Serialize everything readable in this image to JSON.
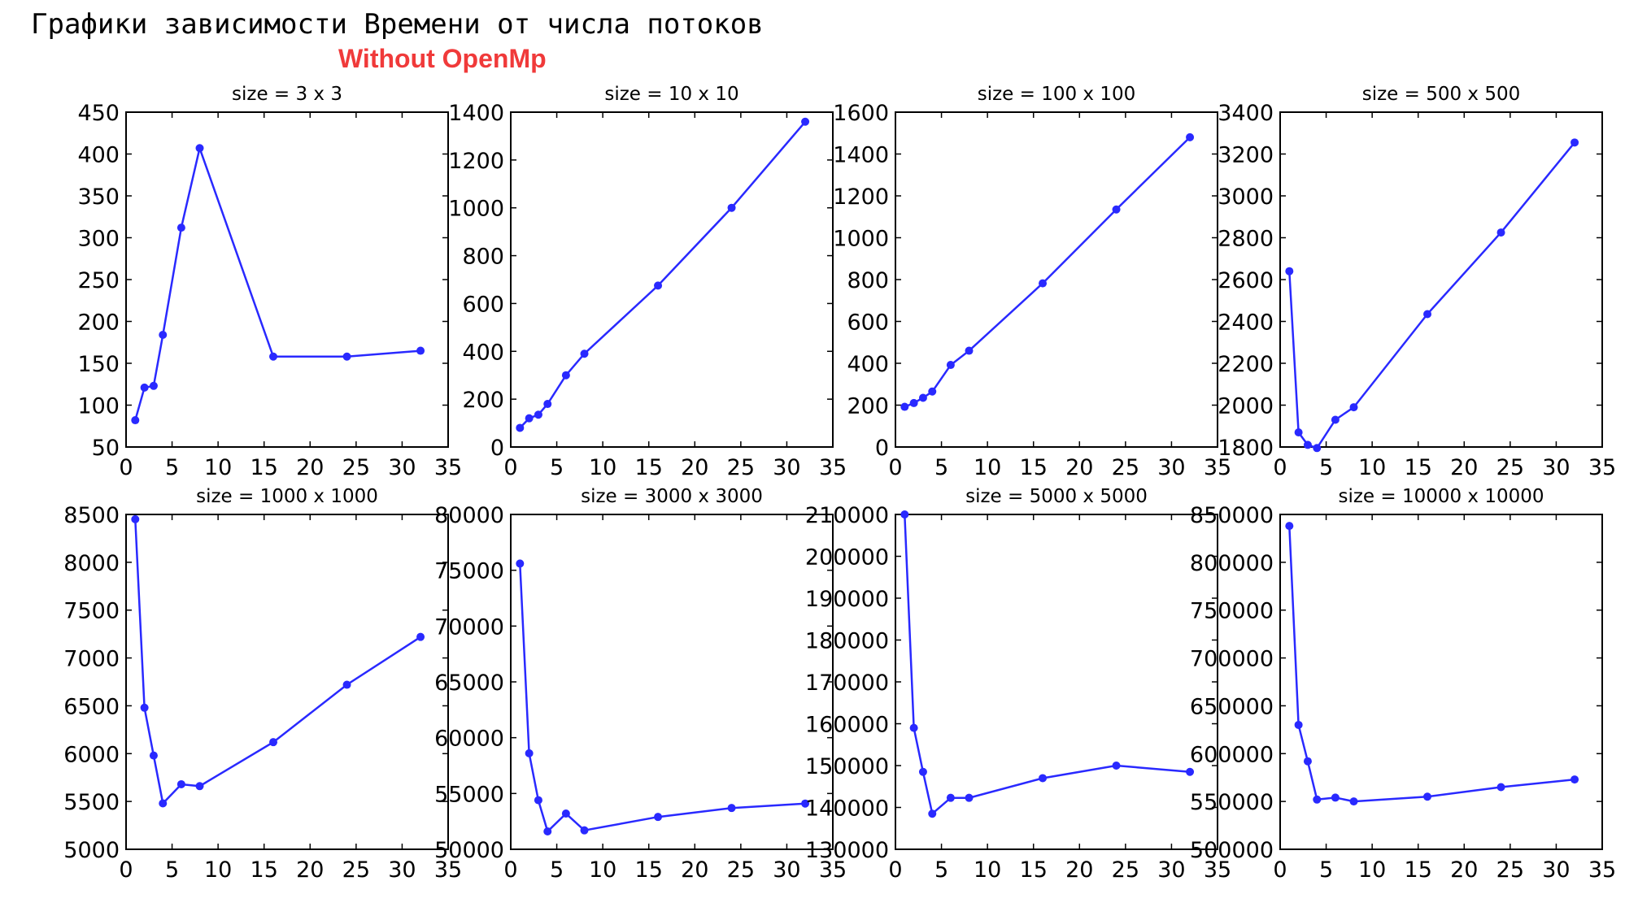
{
  "header": {
    "title": "Графики зависимости Времени от числа потоков",
    "subtitle": "Without OpenMp"
  },
  "colors": {
    "series": "#2929ff",
    "subtitle": "#f03a3a",
    "axis": "#000000"
  },
  "chart_data": [
    {
      "type": "line",
      "title": "size = 3 x 3",
      "x": [
        1,
        2,
        3,
        4,
        6,
        8,
        16,
        24,
        32
      ],
      "values": [
        82,
        121,
        123,
        184,
        312,
        407,
        158,
        158,
        165
      ],
      "xlim": [
        0,
        35
      ],
      "ylim": [
        50,
        450
      ],
      "xticks": [
        0,
        5,
        10,
        15,
        20,
        25,
        30,
        35
      ],
      "yticks": [
        50,
        100,
        150,
        200,
        250,
        300,
        350,
        400,
        450
      ],
      "grid": false
    },
    {
      "type": "line",
      "title": "size = 10 x 10",
      "x": [
        1,
        2,
        3,
        4,
        6,
        8,
        16,
        24,
        32
      ],
      "values": [
        80,
        120,
        135,
        180,
        300,
        390,
        675,
        1000,
        1360
      ],
      "xlim": [
        0,
        35
      ],
      "ylim": [
        0,
        1400
      ],
      "xticks": [
        0,
        5,
        10,
        15,
        20,
        25,
        30,
        35
      ],
      "yticks": [
        0,
        200,
        400,
        600,
        800,
        1000,
        1200,
        1400
      ],
      "grid": false
    },
    {
      "type": "line",
      "title": "size = 100 x 100",
      "x": [
        1,
        2,
        3,
        4,
        6,
        8,
        16,
        24,
        32
      ],
      "values": [
        192,
        210,
        235,
        265,
        392,
        460,
        782,
        1135,
        1480
      ],
      "xlim": [
        0,
        35
      ],
      "ylim": [
        0,
        1600
      ],
      "xticks": [
        0,
        5,
        10,
        15,
        20,
        25,
        30,
        35
      ],
      "yticks": [
        0,
        200,
        400,
        600,
        800,
        1000,
        1200,
        1400,
        1600
      ],
      "grid": false
    },
    {
      "type": "line",
      "title": "size = 500 x 500",
      "x": [
        1,
        2,
        3,
        4,
        6,
        8,
        16,
        24,
        32
      ],
      "values": [
        2640,
        1870,
        1810,
        1795,
        1930,
        1990,
        2435,
        2825,
        3255
      ],
      "xlim": [
        0,
        35
      ],
      "ylim": [
        1800,
        3400
      ],
      "xticks": [
        0,
        5,
        10,
        15,
        20,
        25,
        30,
        35
      ],
      "yticks": [
        1800,
        2000,
        2200,
        2400,
        2600,
        2800,
        3000,
        3200,
        3400
      ],
      "grid": false
    },
    {
      "type": "line",
      "title": "size = 1000 x 1000",
      "x": [
        1,
        2,
        3,
        4,
        6,
        8,
        16,
        24,
        32
      ],
      "values": [
        8450,
        6480,
        5980,
        5480,
        5680,
        5660,
        6120,
        6720,
        7220
      ],
      "xlim": [
        0,
        35
      ],
      "ylim": [
        5000,
        8500
      ],
      "xticks": [
        0,
        5,
        10,
        15,
        20,
        25,
        30,
        35
      ],
      "yticks": [
        5000,
        5500,
        6000,
        6500,
        7000,
        7500,
        8000,
        8500
      ],
      "grid": false
    },
    {
      "type": "line",
      "title": "size = 3000 x 3000",
      "x": [
        1,
        2,
        3,
        4,
        6,
        8,
        16,
        24,
        32
      ],
      "values": [
        75600,
        58600,
        54400,
        51600,
        53200,
        51700,
        52900,
        53700,
        54100
      ],
      "xlim": [
        0,
        35
      ],
      "ylim": [
        50000,
        80000
      ],
      "xticks": [
        0,
        5,
        10,
        15,
        20,
        25,
        30,
        35
      ],
      "yticks": [
        50000,
        55000,
        60000,
        65000,
        70000,
        75000,
        80000
      ],
      "grid": false
    },
    {
      "type": "line",
      "title": "size = 5000 x 5000",
      "x": [
        1,
        2,
        3,
        4,
        6,
        8,
        16,
        24,
        32
      ],
      "values": [
        210000,
        159000,
        148500,
        138500,
        142300,
        142300,
        147000,
        150000,
        148500
      ],
      "xlim": [
        0,
        35
      ],
      "ylim": [
        130000,
        210000
      ],
      "xticks": [
        0,
        5,
        10,
        15,
        20,
        25,
        30,
        35
      ],
      "yticks": [
        130000,
        140000,
        150000,
        160000,
        170000,
        180000,
        190000,
        200000,
        210000
      ],
      "grid": false
    },
    {
      "type": "line",
      "title": "size = 10000 x 10000",
      "x": [
        1,
        2,
        3,
        4,
        6,
        8,
        16,
        24,
        32
      ],
      "values": [
        838000,
        630000,
        592000,
        552000,
        554000,
        550000,
        555000,
        565000,
        573000
      ],
      "xlim": [
        0,
        35
      ],
      "ylim": [
        500000,
        850000
      ],
      "xticks": [
        0,
        5,
        10,
        15,
        20,
        25,
        30,
        35
      ],
      "yticks": [
        500000,
        550000,
        600000,
        650000,
        700000,
        750000,
        800000,
        850000
      ],
      "grid": false
    }
  ]
}
